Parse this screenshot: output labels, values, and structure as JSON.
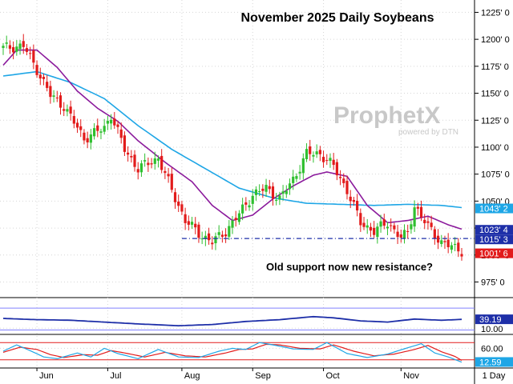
{
  "chart_data": {
    "type": "candlestick",
    "title": "November 2025 Daily Soybeans",
    "annotation": "Old support now new resistance?",
    "logo": {
      "brand": "ProphetX",
      "tagline": "powered by DTN"
    },
    "interval_label": "1 Day",
    "price_axis": {
      "min": 962,
      "max": 1232,
      "ticks": [
        "1225' 0",
        "1200' 0",
        "1175' 0",
        "1150' 0",
        "1125' 0",
        "1100' 0",
        "1075' 0",
        "1050' 0",
        "1025' 0",
        "1000' 0",
        "975' 0"
      ],
      "tick_values": [
        1225,
        1200,
        1175,
        1150,
        1125,
        1100,
        1075,
        1050,
        1025,
        1000,
        975
      ]
    },
    "months": [
      "Jun",
      "Jul",
      "Aug",
      "Sep",
      "Oct",
      "Nov"
    ],
    "month_start_index": [
      10,
      31,
      53,
      74,
      95,
      118
    ],
    "bars": 137,
    "price_path_anchors": [
      [
        0,
        1192
      ],
      [
        6,
        1194
      ],
      [
        10,
        1172
      ],
      [
        14,
        1148
      ],
      [
        18,
        1138
      ],
      [
        24,
        1108
      ],
      [
        30,
        1118
      ],
      [
        32,
        1130
      ],
      [
        36,
        1098
      ],
      [
        40,
        1080
      ],
      [
        46,
        1090
      ],
      [
        50,
        1060
      ],
      [
        54,
        1032
      ],
      [
        58,
        1020
      ],
      [
        62,
        1012
      ],
      [
        66,
        1022
      ],
      [
        70,
        1038
      ],
      [
        74,
        1056
      ],
      [
        78,
        1062
      ],
      [
        82,
        1052
      ],
      [
        86,
        1070
      ],
      [
        90,
        1094
      ],
      [
        94,
        1094
      ],
      [
        98,
        1082
      ],
      [
        102,
        1060
      ],
      [
        106,
        1030
      ],
      [
        110,
        1022
      ],
      [
        114,
        1030
      ],
      [
        118,
        1016
      ],
      [
        120,
        1020
      ],
      [
        122,
        1046
      ],
      [
        126,
        1026
      ],
      [
        130,
        1012
      ],
      [
        134,
        1006
      ],
      [
        136,
        1004
      ]
    ],
    "ma_short_anchors": [
      [
        0,
        1176
      ],
      [
        4,
        1190
      ],
      [
        10,
        1190
      ],
      [
        16,
        1174
      ],
      [
        22,
        1152
      ],
      [
        28,
        1136
      ],
      [
        34,
        1124
      ],
      [
        40,
        1106
      ],
      [
        48,
        1086
      ],
      [
        56,
        1068
      ],
      [
        62,
        1046
      ],
      [
        68,
        1032
      ],
      [
        74,
        1037
      ],
      [
        80,
        1052
      ],
      [
        86,
        1064
      ],
      [
        92,
        1074
      ],
      [
        96,
        1077
      ],
      [
        102,
        1073
      ],
      [
        108,
        1046
      ],
      [
        114,
        1030
      ],
      [
        120,
        1032
      ],
      [
        126,
        1036
      ],
      [
        132,
        1028
      ],
      [
        136,
        1024
      ]
    ],
    "ma_long_anchors": [
      [
        0,
        1166
      ],
      [
        10,
        1170
      ],
      [
        20,
        1160
      ],
      [
        30,
        1145
      ],
      [
        40,
        1120
      ],
      [
        50,
        1098
      ],
      [
        60,
        1080
      ],
      [
        70,
        1062
      ],
      [
        80,
        1053
      ],
      [
        90,
        1048
      ],
      [
        100,
        1047
      ],
      [
        110,
        1046
      ],
      [
        120,
        1047
      ],
      [
        130,
        1046
      ],
      [
        136,
        1044
      ]
    ],
    "resistance": {
      "value": 1015.3,
      "label": "1015' 3",
      "from_bar": 53
    },
    "price_labels": [
      {
        "label": "1043' 2",
        "value": 1043.2,
        "color": "#1ea6e6"
      },
      {
        "label": "1023' 4",
        "value": 1023.4,
        "color": "#1e2fa8"
      },
      {
        "label": "1015' 3",
        "value": 1015.3,
        "color": "#1e2fa8"
      },
      {
        "label": "1001' 6",
        "value": 1001.6,
        "color": "#e21b1b"
      }
    ],
    "indicator1": {
      "value_label": "39.19",
      "value": 39.19,
      "level_label": "10.00",
      "level": 10,
      "range": [
        0,
        100
      ],
      "line_anchors": [
        [
          0,
          42
        ],
        [
          10,
          38
        ],
        [
          20,
          36
        ],
        [
          30,
          30
        ],
        [
          40,
          24
        ],
        [
          52,
          18
        ],
        [
          62,
          22
        ],
        [
          72,
          32
        ],
        [
          82,
          38
        ],
        [
          92,
          48
        ],
        [
          98,
          44
        ],
        [
          106,
          34
        ],
        [
          114,
          30
        ],
        [
          122,
          40
        ],
        [
          130,
          36
        ],
        [
          136,
          39
        ]
      ],
      "upper_band": 76,
      "lower_band": 4
    },
    "indicator2": {
      "value_label": "60.00",
      "level": 60,
      "value2_label": "12.59",
      "value2": 12.59,
      "range": [
        0,
        100
      ],
      "upper_level": 80,
      "lower_level": 20,
      "k_anchors": [
        [
          0,
          50
        ],
        [
          4,
          72
        ],
        [
          8,
          52
        ],
        [
          12,
          30
        ],
        [
          16,
          24
        ],
        [
          22,
          44
        ],
        [
          26,
          30
        ],
        [
          30,
          60
        ],
        [
          34,
          42
        ],
        [
          40,
          24
        ],
        [
          46,
          56
        ],
        [
          52,
          30
        ],
        [
          58,
          28
        ],
        [
          64,
          50
        ],
        [
          68,
          60
        ],
        [
          72,
          56
        ],
        [
          76,
          80
        ],
        [
          80,
          72
        ],
        [
          86,
          58
        ],
        [
          92,
          56
        ],
        [
          96,
          80
        ],
        [
          102,
          42
        ],
        [
          108,
          28
        ],
        [
          114,
          40
        ],
        [
          120,
          62
        ],
        [
          124,
          76
        ],
        [
          128,
          44
        ],
        [
          132,
          30
        ],
        [
          136,
          12
        ]
      ],
      "d_anchors": [
        [
          0,
          46
        ],
        [
          5,
          64
        ],
        [
          10,
          56
        ],
        [
          14,
          38
        ],
        [
          18,
          28
        ],
        [
          24,
          38
        ],
        [
          28,
          36
        ],
        [
          32,
          52
        ],
        [
          36,
          44
        ],
        [
          42,
          30
        ],
        [
          48,
          46
        ],
        [
          54,
          34
        ],
        [
          60,
          30
        ],
        [
          66,
          44
        ],
        [
          70,
          56
        ],
        [
          74,
          58
        ],
        [
          78,
          74
        ],
        [
          82,
          72
        ],
        [
          88,
          60
        ],
        [
          94,
          58
        ],
        [
          98,
          72
        ],
        [
          104,
          50
        ],
        [
          110,
          34
        ],
        [
          116,
          40
        ],
        [
          122,
          56
        ],
        [
          126,
          70
        ],
        [
          130,
          48
        ],
        [
          134,
          32
        ],
        [
          136,
          18
        ]
      ]
    }
  }
}
